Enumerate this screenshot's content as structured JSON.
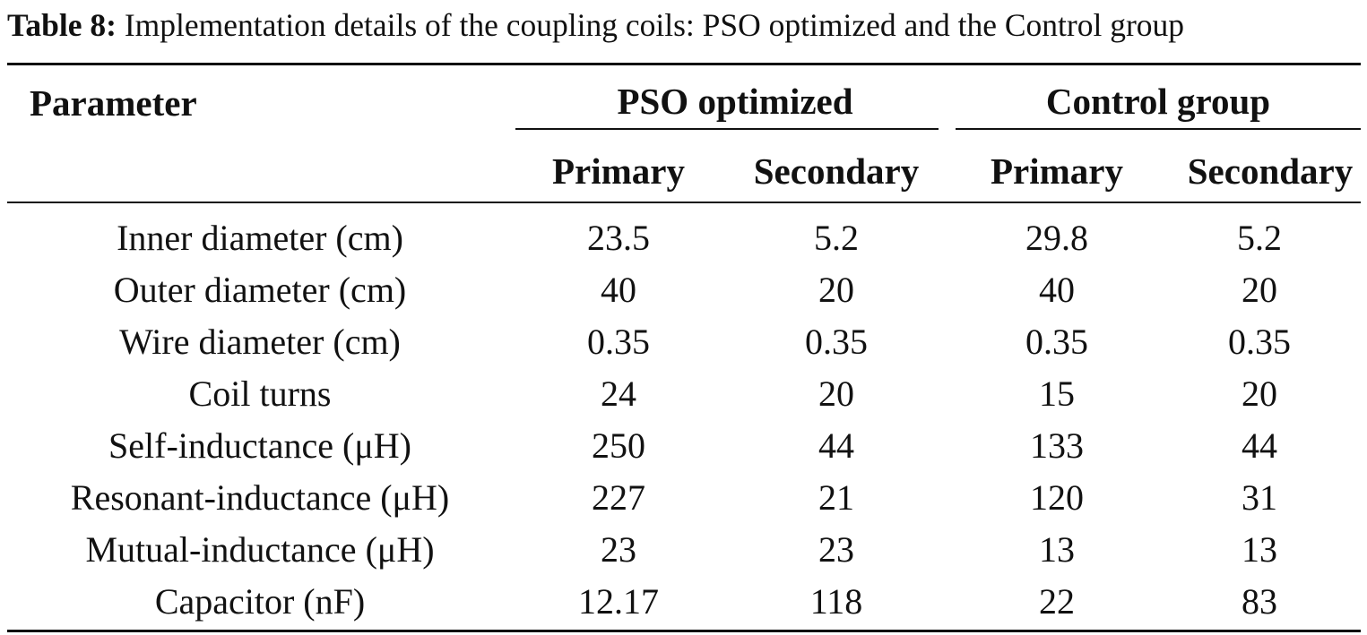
{
  "caption": {
    "label": "Table 8:",
    "text": "Implementation details of the coupling coils: PSO optimized and the Control group"
  },
  "header": {
    "parameter": "Parameter",
    "group_pso": "PSO optimized",
    "group_control": "Control group",
    "pso_primary": "Primary",
    "pso_secondary": "Secondary",
    "control_primary": "Primary",
    "control_secondary": "Secondary"
  },
  "rows": [
    {
      "parameter": "Inner diameter (cm)",
      "pso_primary": "23.5",
      "pso_secondary": "5.2",
      "control_primary": "29.8",
      "control_secondary": "5.2"
    },
    {
      "parameter": "Outer diameter (cm)",
      "pso_primary": "40",
      "pso_secondary": "20",
      "control_primary": "40",
      "control_secondary": "20"
    },
    {
      "parameter": "Wire diameter (cm)",
      "pso_primary": "0.35",
      "pso_secondary": "0.35",
      "control_primary": "0.35",
      "control_secondary": "0.35"
    },
    {
      "parameter": "Coil turns",
      "pso_primary": "24",
      "pso_secondary": "20",
      "control_primary": "15",
      "control_secondary": "20"
    },
    {
      "parameter": "Self-inductance (μH)",
      "pso_primary": "250",
      "pso_secondary": "44",
      "control_primary": "133",
      "control_secondary": "44"
    },
    {
      "parameter": "Resonant-inductance (μH)",
      "pso_primary": "227",
      "pso_secondary": "21",
      "control_primary": "120",
      "control_secondary": "31"
    },
    {
      "parameter": "Mutual-inductance (μH)",
      "pso_primary": "23",
      "pso_secondary": "23",
      "control_primary": "13",
      "control_secondary": "13"
    },
    {
      "parameter": "Capacitor (nF)",
      "pso_primary": "12.17",
      "pso_secondary": "118",
      "control_primary": "22",
      "control_secondary": "83"
    }
  ]
}
